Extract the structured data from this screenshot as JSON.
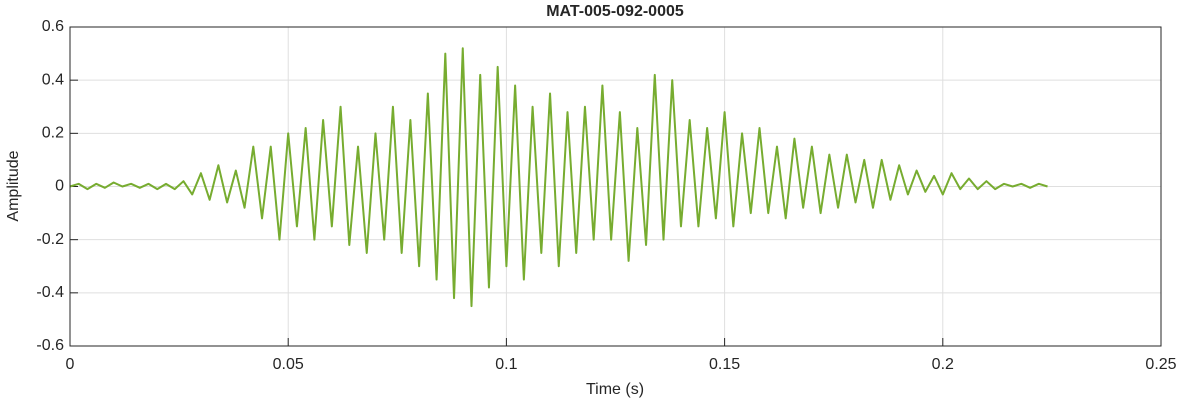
{
  "chart_data": {
    "type": "line",
    "title": "MAT-005-092-0005",
    "xlabel": "Time (s)",
    "ylabel": "Amplitude",
    "x": [
      0,
      0.002,
      0.004,
      0.006,
      0.008,
      0.01,
      0.012,
      0.014,
      0.016,
      0.018,
      0.02,
      0.022,
      0.024,
      0.026,
      0.028,
      0.03,
      0.032,
      0.034,
      0.036,
      0.038,
      0.04,
      0.042,
      0.044,
      0.046,
      0.048,
      0.05,
      0.052,
      0.054,
      0.056,
      0.058,
      0.06,
      0.062,
      0.064,
      0.066,
      0.068,
      0.07,
      0.072,
      0.074,
      0.076,
      0.078,
      0.08,
      0.082,
      0.084,
      0.086,
      0.088,
      0.09,
      0.092,
      0.094,
      0.096,
      0.098,
      0.1,
      0.102,
      0.104,
      0.106,
      0.108,
      0.11,
      0.112,
      0.114,
      0.116,
      0.118,
      0.12,
      0.122,
      0.124,
      0.126,
      0.128,
      0.13,
      0.132,
      0.134,
      0.136,
      0.138,
      0.14,
      0.142,
      0.144,
      0.146,
      0.148,
      0.15,
      0.152,
      0.154,
      0.156,
      0.158,
      0.16,
      0.162,
      0.164,
      0.166,
      0.168,
      0.17,
      0.172,
      0.174,
      0.176,
      0.178,
      0.18,
      0.182,
      0.184,
      0.186,
      0.188,
      0.19,
      0.192,
      0.194,
      0.196,
      0.198,
      0.2,
      0.202,
      0.204,
      0.206,
      0.208,
      0.21,
      0.212,
      0.214,
      0.216,
      0.218,
      0.22,
      0.222,
      0.224
    ],
    "series": [
      {
        "name": "Amplitude",
        "color": "#77ac30",
        "values": [
          0,
          0.01,
          -0.01,
          0.01,
          -0.005,
          0.015,
          0,
          0.01,
          -0.005,
          0.01,
          -0.01,
          0.01,
          -0.01,
          0.02,
          -0.03,
          0.05,
          -0.05,
          0.08,
          -0.06,
          0.06,
          -0.08,
          0.15,
          -0.12,
          0.15,
          -0.2,
          0.2,
          -0.15,
          0.22,
          -0.2,
          0.25,
          -0.15,
          0.3,
          -0.22,
          0.15,
          -0.25,
          0.2,
          -0.2,
          0.3,
          -0.25,
          0.25,
          -0.3,
          0.35,
          -0.35,
          0.5,
          -0.42,
          0.52,
          -0.45,
          0.42,
          -0.38,
          0.45,
          -0.3,
          0.38,
          -0.35,
          0.3,
          -0.25,
          0.35,
          -0.3,
          0.28,
          -0.25,
          0.3,
          -0.2,
          0.38,
          -0.2,
          0.28,
          -0.28,
          0.22,
          -0.22,
          0.42,
          -0.2,
          0.4,
          -0.15,
          0.25,
          -0.15,
          0.22,
          -0.12,
          0.28,
          -0.15,
          0.2,
          -0.1,
          0.22,
          -0.1,
          0.15,
          -0.12,
          0.18,
          -0.08,
          0.15,
          -0.1,
          0.12,
          -0.08,
          0.12,
          -0.06,
          0.1,
          -0.08,
          0.1,
          -0.05,
          0.08,
          -0.03,
          0.06,
          -0.02,
          0.04,
          -0.03,
          0.05,
          -0.01,
          0.03,
          -0.01,
          0.02,
          -0.01,
          0.01,
          0,
          0.01,
          -0.005,
          0.01,
          0
        ]
      }
    ],
    "xlim": [
      0,
      0.25
    ],
    "xticks": [
      0,
      0.05,
      0.1,
      0.15,
      0.2,
      0.25
    ],
    "ylim": [
      -0.6,
      0.6
    ],
    "yticks": [
      -0.6,
      -0.4,
      -0.2,
      0,
      0.2,
      0.4,
      0.6
    ],
    "grid": true
  }
}
